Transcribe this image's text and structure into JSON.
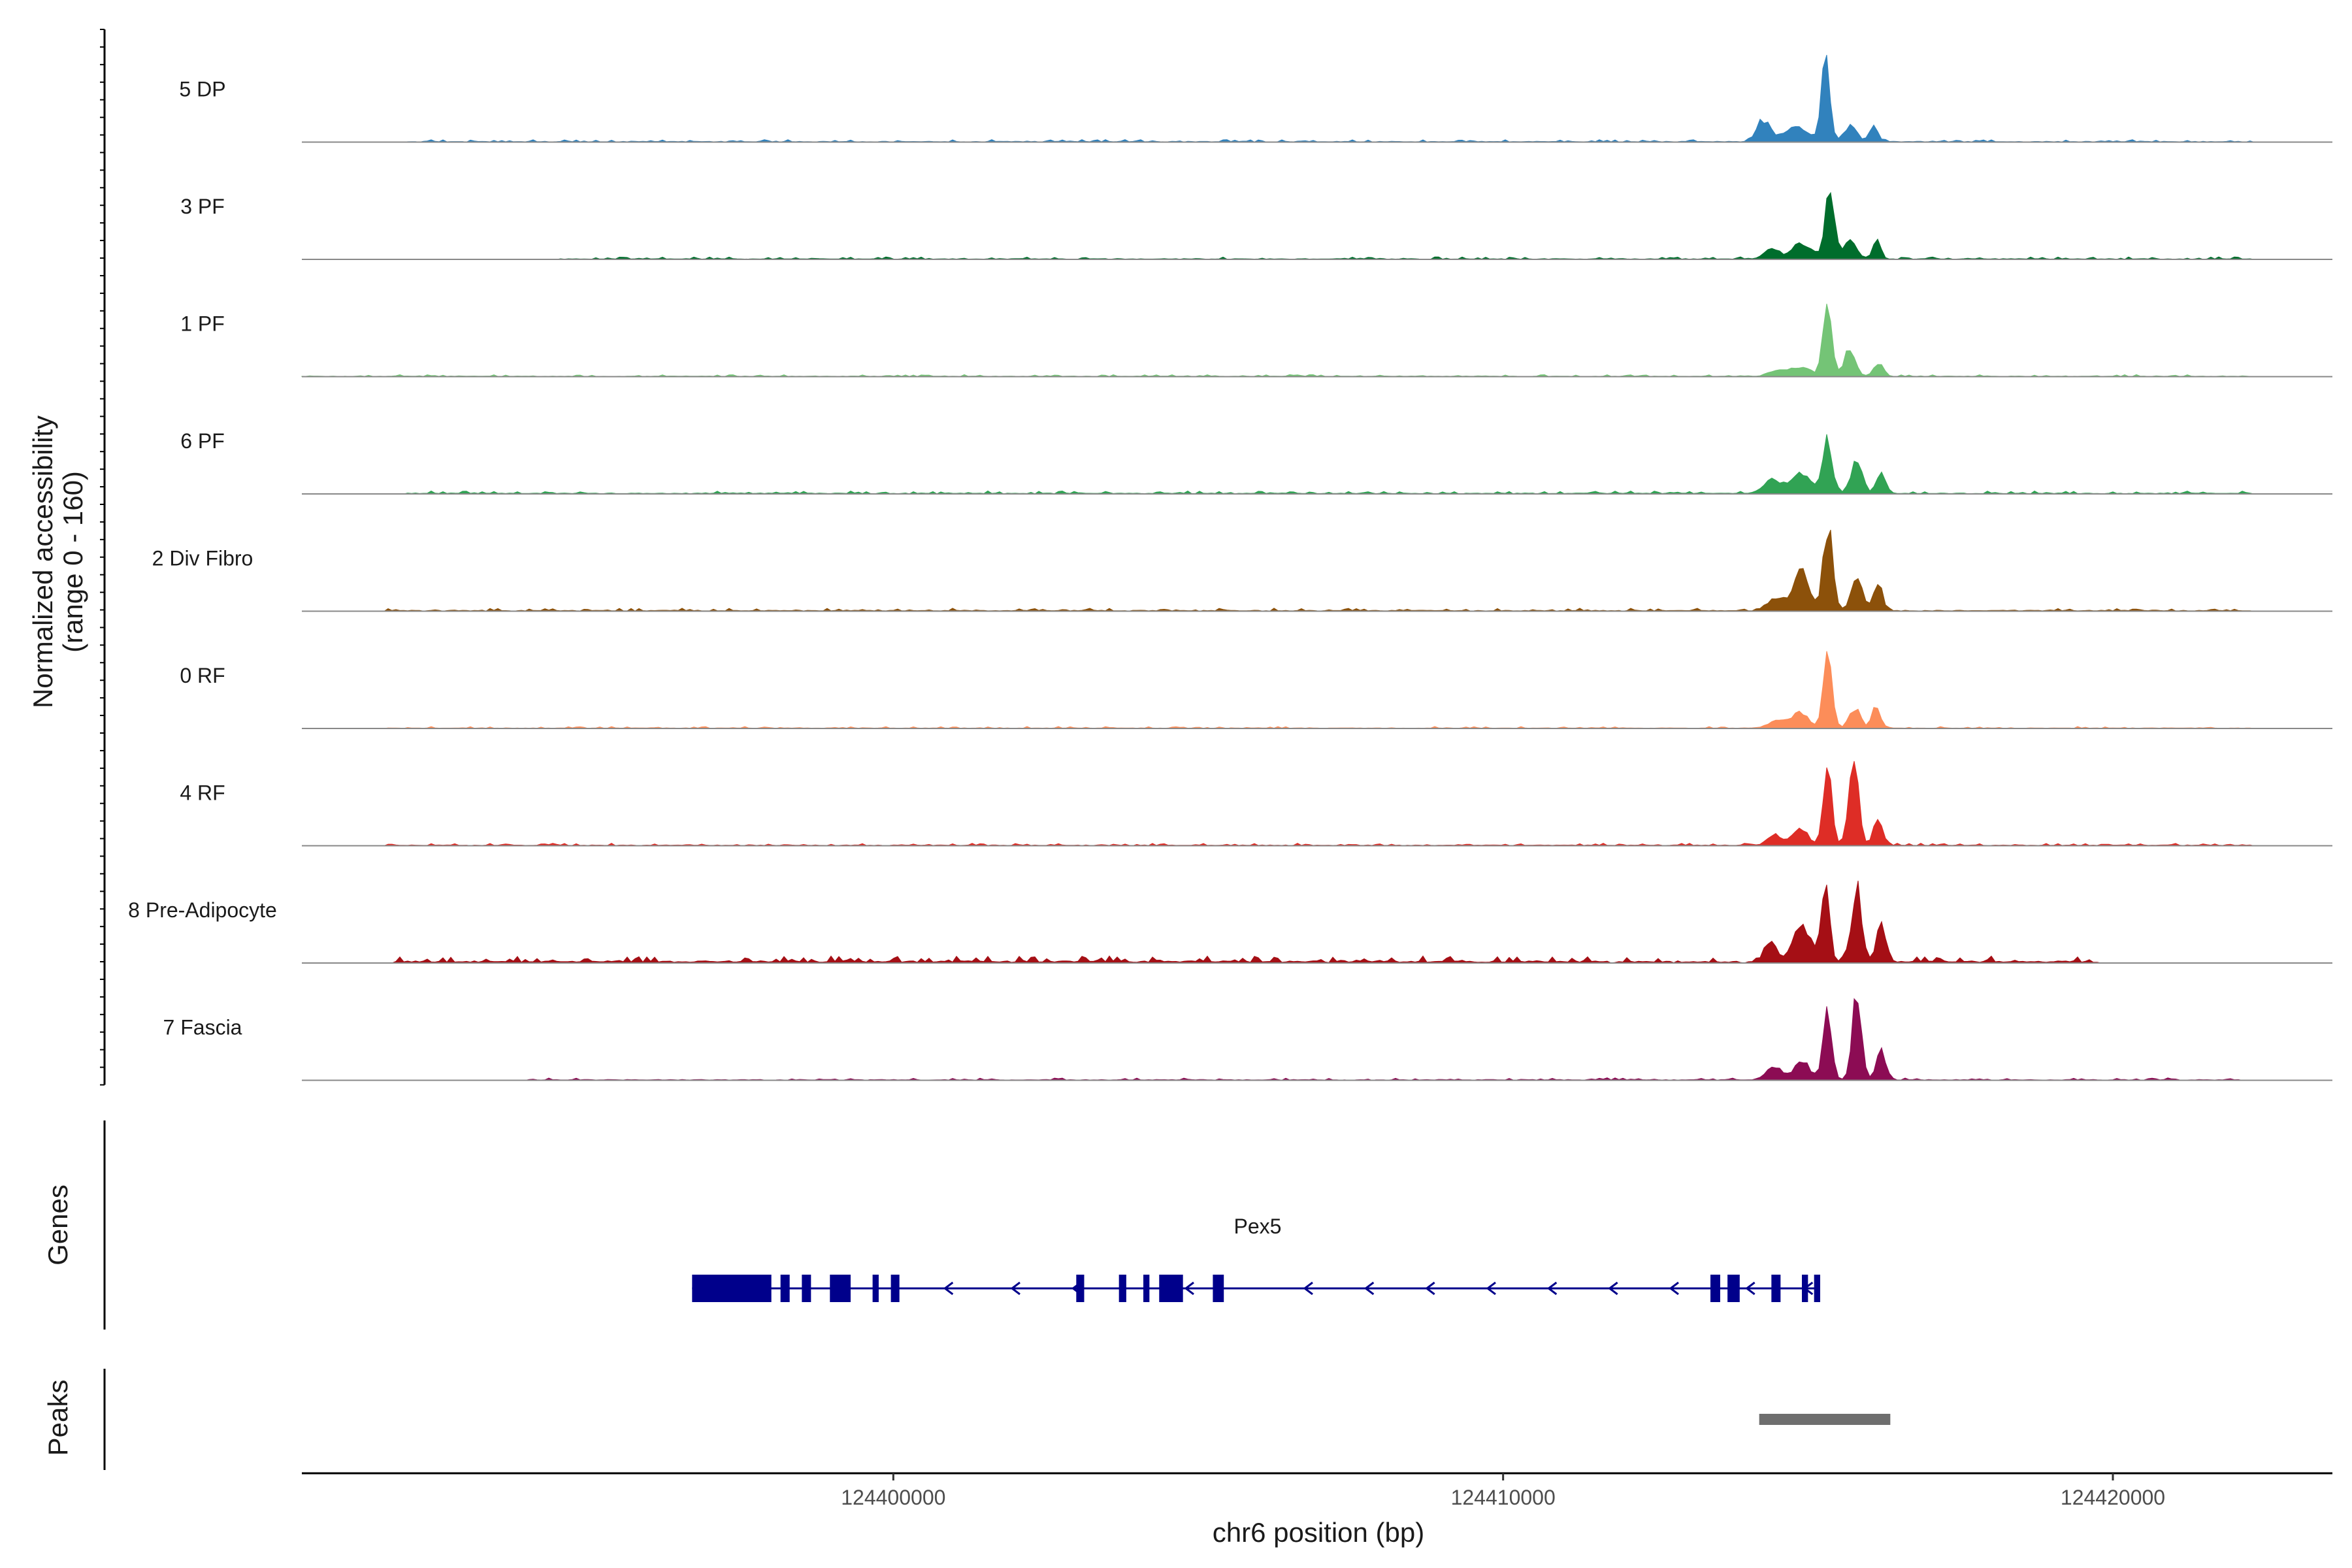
{
  "chart_data": {
    "type": "area",
    "title": "",
    "xlabel": "chr6 position (bp)",
    "ylabel": "Normalized accessibility",
    "ylabel_sub": "(range 0 - 160)",
    "ylim": [
      0,
      160
    ],
    "xlim": [
      124390300,
      124423600
    ],
    "x_ticks": [
      124400000,
      124410000,
      124420000
    ],
    "x_tick_labels": [
      "124400000",
      "124410000",
      "124420000"
    ],
    "tracks": [
      {
        "name": "5 DP",
        "color": "#3182bd",
        "start": 124392000,
        "end": 124422300,
        "noise": 5,
        "peaks": [
          [
            124414270,
            32,
            110
          ],
          [
            124414800,
            22,
            200
          ],
          [
            124415290,
            120,
            70
          ],
          [
            124415700,
            26,
            100
          ],
          [
            124416080,
            22,
            70
          ]
        ]
      },
      {
        "name": "3 PF",
        "color": "#006d2c",
        "start": 124394500,
        "end": 124422300,
        "noise": 5,
        "peaks": [
          [
            124414400,
            14,
            120
          ],
          [
            124414900,
            24,
            160
          ],
          [
            124415360,
            110,
            75
          ],
          [
            124415700,
            30,
            100
          ],
          [
            124416130,
            34,
            60
          ]
        ]
      },
      {
        "name": "1 PF",
        "color": "#74c476",
        "start": 124390300,
        "end": 124422300,
        "noise": 4,
        "peaks": [
          [
            124414500,
            10,
            140
          ],
          [
            124414900,
            14,
            150
          ],
          [
            124415320,
            120,
            70
          ],
          [
            124415680,
            40,
            90
          ],
          [
            124416150,
            20,
            80
          ]
        ]
      },
      {
        "name": "6 PF",
        "color": "#31a354",
        "start": 124392000,
        "end": 124422300,
        "noise": 6,
        "peaks": [
          [
            124414400,
            20,
            140
          ],
          [
            124414880,
            30,
            160
          ],
          [
            124415320,
            80,
            80
          ],
          [
            124415800,
            50,
            90
          ],
          [
            124416200,
            36,
            70
          ]
        ]
      },
      {
        "name": "2 Div Fibro",
        "color": "#8c510a",
        "start": 124391700,
        "end": 124422300,
        "noise": 6,
        "peaks": [
          [
            124414500,
            20,
            140
          ],
          [
            124414900,
            62,
            120
          ],
          [
            124415330,
            128,
            80
          ],
          [
            124415800,
            50,
            90
          ],
          [
            124416150,
            44,
            70
          ]
        ]
      },
      {
        "name": "0 RF",
        "color": "#fc8d59",
        "start": 124391700,
        "end": 124422300,
        "noise": 4,
        "peaks": [
          [
            124414500,
            12,
            140
          ],
          [
            124414880,
            24,
            130
          ],
          [
            124415320,
            112,
            70
          ],
          [
            124415770,
            30,
            90
          ],
          [
            124416120,
            36,
            60
          ]
        ]
      },
      {
        "name": "4 RF",
        "color": "#de2d26",
        "start": 124391700,
        "end": 124422300,
        "noise": 5,
        "peaks": [
          [
            124414450,
            16,
            120
          ],
          [
            124414880,
            26,
            120
          ],
          [
            124415320,
            122,
            70
          ],
          [
            124415750,
            140,
            80
          ],
          [
            124416150,
            44,
            70
          ]
        ]
      },
      {
        "name": "8 Pre-Adipocyte",
        "color": "#a50f15",
        "start": 124391800,
        "end": 124419800,
        "noise": 14,
        "peaks": [
          [
            124414380,
            24,
            110
          ],
          [
            124414900,
            54,
            140
          ],
          [
            124415280,
            118,
            70
          ],
          [
            124415800,
            118,
            80
          ],
          [
            124416200,
            54,
            80
          ]
        ]
      },
      {
        "name": "7 Fascia",
        "color": "#8c0c54",
        "start": 124394000,
        "end": 124422100,
        "noise": 5,
        "peaks": [
          [
            124414450,
            20,
            130
          ],
          [
            124414900,
            28,
            130
          ],
          [
            124415320,
            100,
            70
          ],
          [
            124415800,
            126,
            75
          ],
          [
            124416200,
            44,
            80
          ]
        ]
      }
    ],
    "genes_track_title": "Genes",
    "gene": {
      "name": "Pex5",
      "color": "#00008b",
      "start": 124396700,
      "end": 124415200,
      "strand": "-",
      "exons": [
        [
          124396700,
          124398000
        ],
        [
          124398150,
          124398300
        ],
        [
          124398500,
          124398650
        ],
        [
          124398960,
          124399300
        ],
        [
          124399660,
          124399760
        ],
        [
          124399960,
          124400100
        ],
        [
          124403000,
          124403130
        ],
        [
          124403700,
          124403820
        ],
        [
          124404100,
          124404200
        ],
        [
          124404360,
          124404750
        ],
        [
          124405240,
          124405420
        ],
        [
          124413400,
          124413560
        ],
        [
          124413680,
          124413880
        ],
        [
          124414400,
          124414550
        ],
        [
          124414900,
          124415000
        ],
        [
          124415100,
          124415200
        ]
      ],
      "arrows": [
        124400900,
        124402000,
        124403000,
        124404850,
        124406800,
        124407800,
        124408800,
        124409800,
        124410800,
        124411800,
        124412800,
        124414050,
        124415000
      ]
    },
    "peaks_track_title": "Peaks",
    "peak_regions": [
      [
        124414200,
        124416350
      ]
    ],
    "peak_color": "#6e6e6e"
  }
}
